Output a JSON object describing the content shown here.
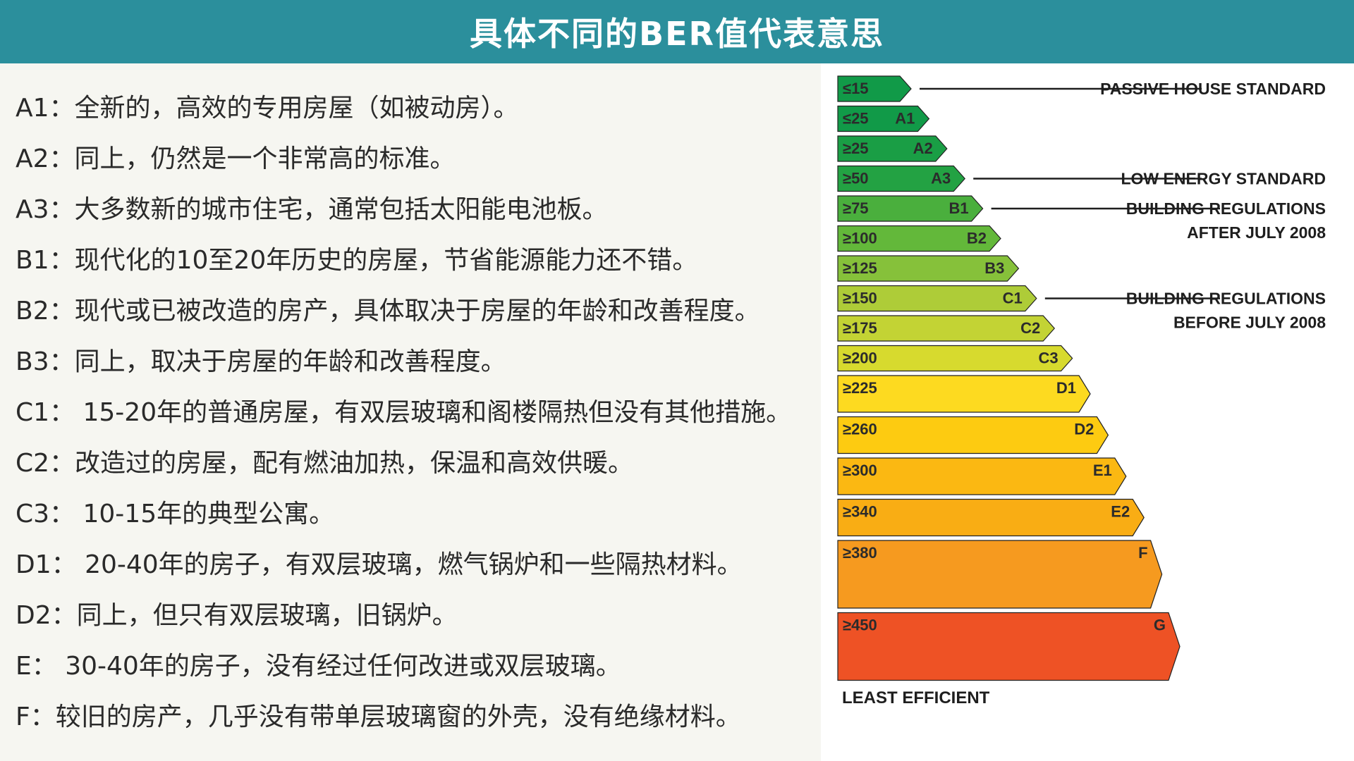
{
  "header": {
    "title": "具体不同的BER值代表意思"
  },
  "descriptions": [
    "A1：全新的，高效的专用房屋（如被动房）。",
    "A2：同上，仍然是一个非常高的标准。",
    "A3：大多数新的城市住宅，通常包括太阳能电池板。",
    "B1：现代化的10至20年历史的房屋，节省能源能力还不错。",
    "B2：现代或已被改造的房产，具体取决于房屋的年龄和改善程度。",
    "B3：同上，取决于房屋的年龄和改善程度。",
    "C1：  15-20年的普通房屋，有双层玻璃和阁楼隔热但没有其他措施。",
    "C2：改造过的房屋，配有燃油加热，保温和高效供暖。",
    "C3：  10-15年的典型公寓。",
    "D1：  20-40年的房子，有双层玻璃，燃气锅炉和一些隔热材料。",
    "D2：同上，但只有双层玻璃，旧锅炉。",
    "E：  30-40年的房子，没有经过任何改进或双层玻璃。",
    "F：较旧的房产，几乎没有带单层玻璃窗的外壳，没有绝缘材料。"
  ],
  "chart_data": {
    "type": "bar",
    "orientation": "horizontal",
    "bands": [
      {
        "threshold": "≤15",
        "grade": "",
        "min": 0,
        "color": "#119a48"
      },
      {
        "threshold": "≤25",
        "grade": "A1",
        "min": 15,
        "color": "#119a48"
      },
      {
        "threshold": "≥25",
        "grade": "A2",
        "min": 25,
        "color": "#1a9e45"
      },
      {
        "threshold": "≥50",
        "grade": "A3",
        "min": 50,
        "color": "#23a243"
      },
      {
        "threshold": "≥75",
        "grade": "B1",
        "min": 75,
        "color": "#4aaf3d"
      },
      {
        "threshold": "≥100",
        "grade": "B2",
        "min": 100,
        "color": "#63b83a"
      },
      {
        "threshold": "≥125",
        "grade": "B3",
        "min": 125,
        "color": "#86c13a"
      },
      {
        "threshold": "≥150",
        "grade": "C1",
        "min": 150,
        "color": "#aecc38"
      },
      {
        "threshold": "≥175",
        "grade": "C2",
        "min": 175,
        "color": "#c3d334"
      },
      {
        "threshold": "≥200",
        "grade": "C3",
        "min": 200,
        "color": "#d7da2e"
      },
      {
        "threshold": "≥225",
        "grade": "D1",
        "min": 225,
        "color": "#fdda20"
      },
      {
        "threshold": "≥260",
        "grade": "D2",
        "min": 260,
        "color": "#fdcb11"
      },
      {
        "threshold": "≥300",
        "grade": "E1",
        "min": 300,
        "color": "#fbb812"
      },
      {
        "threshold": "≥340",
        "grade": "E2",
        "min": 340,
        "color": "#f9ad14"
      },
      {
        "threshold": "≥380",
        "grade": "F",
        "min": 380,
        "color": "#f69a1f"
      },
      {
        "threshold": "≥450",
        "grade": "G",
        "min": 450,
        "color": "#ee5225"
      }
    ],
    "standards": [
      {
        "band": 0,
        "lines": [
          "PASSIVE HOUSE STANDARD"
        ]
      },
      {
        "band": 3,
        "lines": [
          "LOW ENERGY STANDARD"
        ]
      },
      {
        "band": 4,
        "lines": [
          "BUILDING REGULATIONS",
          "AFTER JULY 2008"
        ]
      },
      {
        "band": 7,
        "lines": [
          "BUILDING REGULATIONS",
          "BEFORE JULY 2008"
        ]
      }
    ],
    "footer_label": "LEAST EFFICIENT"
  }
}
